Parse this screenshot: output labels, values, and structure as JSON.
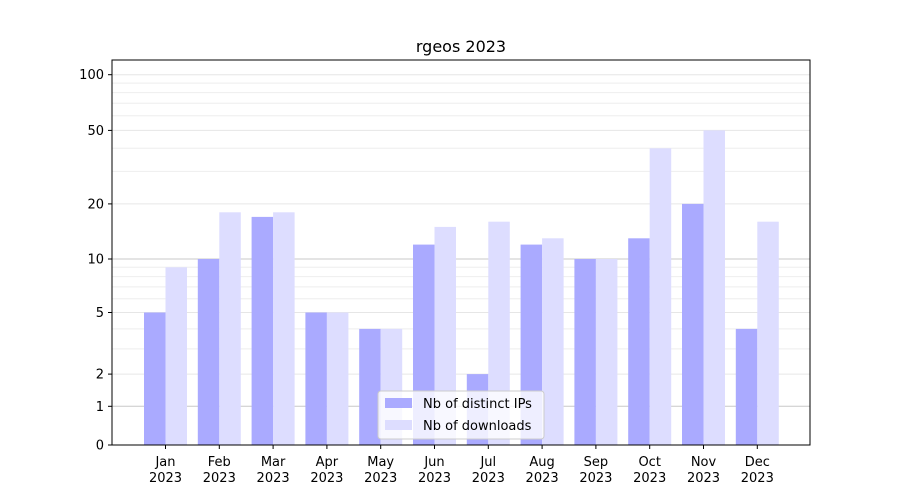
{
  "chart_data": {
    "type": "bar",
    "title": "rgeos 2023",
    "xlabel": "",
    "ylabel": "",
    "y_scale": "symlog",
    "ylim": [
      0,
      120
    ],
    "grid": "horizontal",
    "legend_placement": "bottom-center",
    "categories": [
      "Jan\n2023",
      "Feb\n2023",
      "Mar\n2023",
      "Apr\n2023",
      "May\n2023",
      "Jun\n2023",
      "Jul\n2023",
      "Aug\n2023",
      "Sep\n2023",
      "Oct\n2023",
      "Nov\n2023",
      "Dec\n2023"
    ],
    "category_months": [
      "Jan",
      "Feb",
      "Mar",
      "Apr",
      "May",
      "Jun",
      "Jul",
      "Aug",
      "Sep",
      "Oct",
      "Nov",
      "Dec"
    ],
    "category_years": [
      "2023",
      "2023",
      "2023",
      "2023",
      "2023",
      "2023",
      "2023",
      "2023",
      "2023",
      "2023",
      "2023",
      "2023"
    ],
    "y_ticks": [
      0,
      1,
      2,
      5,
      10,
      20,
      50,
      100
    ],
    "y_tick_labels": [
      "0",
      "1",
      "2",
      "5",
      "10",
      "20",
      "50",
      "100"
    ],
    "series": [
      {
        "name": "Nb of distinct IPs",
        "color": "#aaaaff",
        "values": [
          5,
          10,
          17,
          5,
          4,
          12,
          2,
          12,
          10,
          13,
          20,
          4
        ]
      },
      {
        "name": "Nb of downloads",
        "color": "#ddddff",
        "values": [
          9,
          18,
          18,
          5,
          4,
          15,
          16,
          13,
          10,
          40,
          50,
          16
        ]
      }
    ]
  }
}
